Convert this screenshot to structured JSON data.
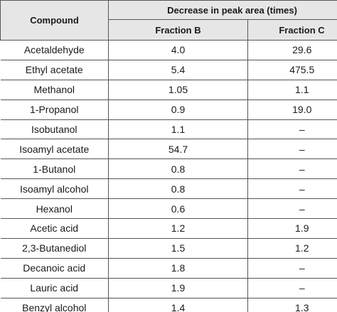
{
  "header": {
    "compound": "Compound",
    "group": "Decrease in peak area (times)",
    "fraction_b": "Fraction B",
    "fraction_c": "Fraction C"
  },
  "rows": [
    {
      "compound": "Acetaldehyde",
      "b": "4.0",
      "c": "29.6"
    },
    {
      "compound": "Ethyl acetate",
      "b": "5.4",
      "c": "475.5"
    },
    {
      "compound": "Methanol",
      "b": "1.05",
      "c": "1.1"
    },
    {
      "compound": "1-Propanol",
      "b": "0.9",
      "c": "19.0"
    },
    {
      "compound": "Isobutanol",
      "b": "1.1",
      "c": "–"
    },
    {
      "compound": "Isoamyl acetate",
      "b": "54.7",
      "c": "–"
    },
    {
      "compound": "1-Butanol",
      "b": "0.8",
      "c": "–"
    },
    {
      "compound": "Isoamyl alcohol",
      "b": "0.8",
      "c": "–"
    },
    {
      "compound": "Hexanol",
      "b": "0.6",
      "c": "–"
    },
    {
      "compound": "Acetic acid",
      "b": "1.2",
      "c": "1.9"
    },
    {
      "compound": "2,3-Butanediol",
      "b": "1.5",
      "c": "1.2"
    },
    {
      "compound": "Decanoic acid",
      "b": "1.8",
      "c": "–"
    },
    {
      "compound": "Lauric acid",
      "b": "1.9",
      "c": "–"
    },
    {
      "compound": "Benzyl alcohol",
      "b": "1.4",
      "c": "1.3"
    }
  ]
}
